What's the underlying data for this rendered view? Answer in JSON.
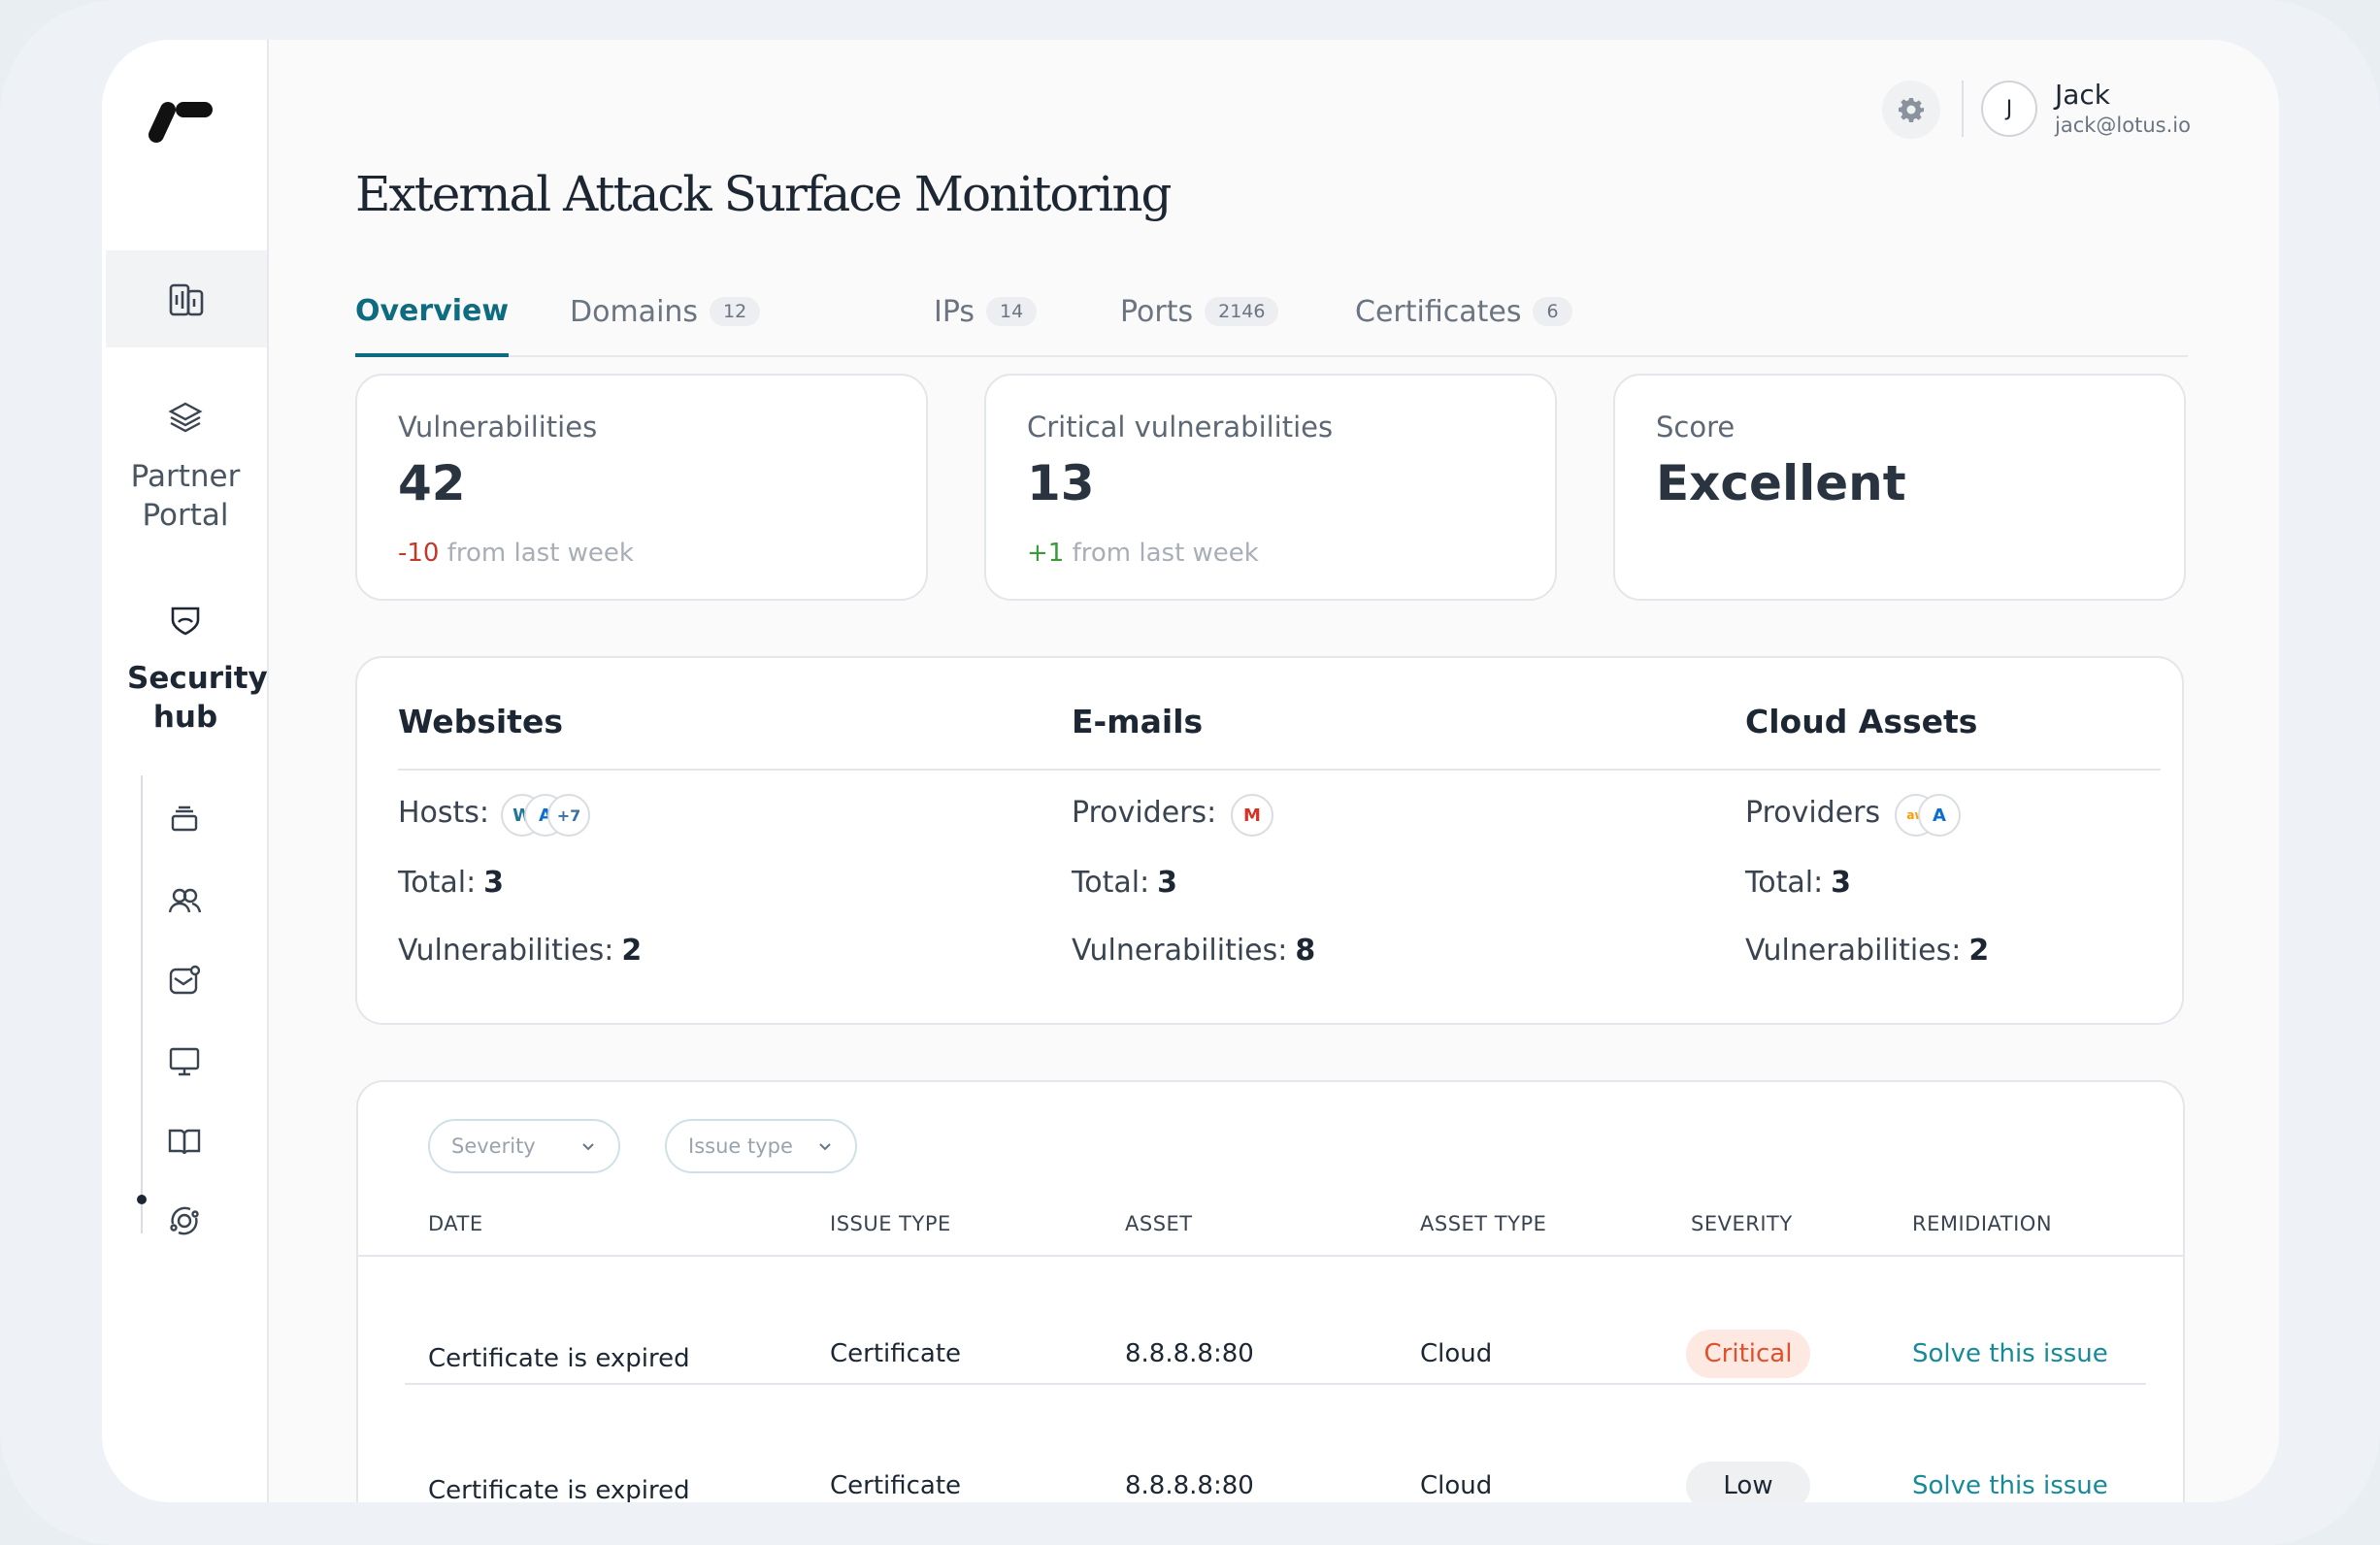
{
  "user": {
    "initial": "J",
    "name": "Jack",
    "email": "jack@lotus.io"
  },
  "page": {
    "title": "External Attack Surface Monitoring"
  },
  "sidebar": {
    "partner_portal": "Partner Portal",
    "security_hub": "Security hub"
  },
  "tabs": [
    {
      "label": "Overview",
      "count": ""
    },
    {
      "label": "Domains",
      "count": "12"
    },
    {
      "label": "IPs",
      "count": "14"
    },
    {
      "label": "Ports",
      "count": "2146"
    },
    {
      "label": "Certificates",
      "count": "6"
    }
  ],
  "stats": [
    {
      "label": "Vulnerabilities",
      "value": "42",
      "delta": "-10",
      "delta_text": "from last week"
    },
    {
      "label": "Critical vulnerabilities",
      "value": "13",
      "delta": "+1",
      "delta_text": "from last week"
    },
    {
      "label": "Score",
      "value": "Excellent"
    }
  ],
  "summary": {
    "websites": {
      "title": "Websites",
      "hosts_label": "Hosts:",
      "more": "+7",
      "total_label": "Total:",
      "total": "3",
      "vuln_label": "Vulnerabilities:",
      "vuln": "2"
    },
    "emails": {
      "title": "E-mails",
      "providers_label": "Providers:",
      "total_label": "Total:",
      "total": "3",
      "vuln_label": "Vulnerabilities:",
      "vuln": "8"
    },
    "cloud": {
      "title": "Cloud Assets",
      "providers_label": "Providers",
      "total_label": "Total:",
      "total": "3",
      "vuln_label": "Vulnerabilities:",
      "vuln": "2"
    }
  },
  "filters": {
    "severity": "Severity",
    "issue_type": "Issue type"
  },
  "table": {
    "headers": [
      "DATE",
      "ISSUE TYPE",
      "ASSET",
      "ASSET TYPE",
      "SEVERITY",
      "REMIDIATION"
    ],
    "rows": [
      {
        "date": "Certificate is expired",
        "issue_type": "Certificate",
        "asset": "8.8.8.8:80",
        "asset_type": "Cloud",
        "severity": "Critical",
        "remediation": "Solve this issue"
      },
      {
        "date": "Certificate is expired",
        "issue_type": "Certificate",
        "asset": "8.8.8.8:80",
        "asset_type": "Cloud",
        "severity": "Low",
        "remediation": "Solve this issue"
      }
    ]
  },
  "colors": {
    "accent": "#0f6b80",
    "critical_bg": "#fde9e2",
    "critical_fg": "#e0502a",
    "low_bg": "#eef0f2",
    "link": "#168a99"
  }
}
